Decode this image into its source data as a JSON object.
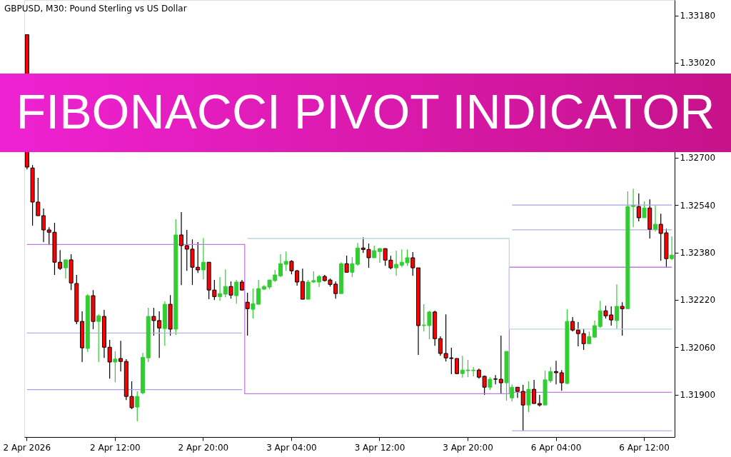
{
  "chart_data": {
    "type": "candlestick",
    "title": "FIBONACCI PIVOT INDICATOR",
    "subtitle": "GBPUSD, M30:  Pound Sterling vs US Dollar",
    "colors": [
      "#ff0000",
      "#ff0000",
      "#ff0000",
      "#ff0000",
      "#ff0000",
      "#ff0000",
      "#ff0000",
      "#32cd32",
      "#ff0000",
      "#ff0000",
      "#ff0000",
      "#32cd32",
      "#ff0000",
      "#32cd32",
      "#ff0000",
      "#ff0000",
      "#32cd32",
      "#ff0000",
      "#ff0000",
      "#ff0000",
      "#32cd32",
      "#32cd32",
      "#32cd32",
      "#ff0000",
      "#ff0000",
      "#32cd32",
      "#ff0000",
      "#32cd32",
      "#ff0000",
      "#ff0000",
      "#ff0000",
      "#ff0000",
      "#32cd32",
      "#ff0000",
      "#ff0000",
      "#32cd32",
      "#32cd32",
      "#ff0000",
      "#32cd32",
      "#ff0000",
      "#ff0000",
      "#32cd32",
      "#32cd32",
      "#32cd32",
      "#32cd32",
      "#32cd32",
      "#32cd32",
      "#32cd32",
      "#ff0000",
      "#ff0000",
      "#ff0000",
      "#32cd32",
      "#32cd32",
      "#32cd32",
      "#ff0000",
      "#ff0000",
      "#ff0000",
      "#32cd32",
      "#ff0000",
      "#32cd32",
      "#32cd32",
      "#ff0000",
      "#ff0000",
      "#32cd32",
      "#32cd32",
      "#ff0000",
      "#ff0000",
      "#32cd32",
      "#32cd32",
      "#32cd32",
      "#ff0000",
      "#ff0000",
      "#32cd32",
      "#32cd32",
      "#ff0000",
      "#ff0000",
      "#ff0000",
      "#ff0000",
      "#ff0000",
      "#32cd32",
      "#32cd32",
      "#32cd32",
      "#ff0000",
      "#ff0000",
      "#32cd32",
      "#ff0000",
      "#ff0000",
      "#32cd32",
      "#32cd32",
      "#ff0000",
      "#ff0000",
      "#32cd32",
      "#ff0000",
      "#ff0000",
      "#32cd32",
      "#32cd32",
      "#ff0000",
      "#ff0000",
      "#32cd32",
      "#ff0000",
      "#ff0000",
      "#ff0000",
      "#32cd32",
      "#32cd32",
      "#32cd32",
      "#ff0000",
      "#ff0000",
      "#32cd32",
      "#ff0000",
      "#32cd32",
      "#32cd32",
      "#ff0000",
      "#32cd32",
      "#ff0000",
      "#32cd32",
      "#ff0000",
      "#ff0000",
      "#32cd32"
    ],
    "categories": [
      "2 Apr 2026",
      null,
      null,
      null,
      null,
      null,
      null,
      null,
      null,
      null,
      null,
      null,
      null,
      null,
      null,
      null,
      "2 Apr 12:00",
      null,
      null,
      null,
      null,
      null,
      null,
      null,
      null,
      null,
      null,
      null,
      null,
      null,
      null,
      null,
      "2 Apr 20:00",
      null,
      null,
      null,
      null,
      null,
      null,
      null,
      null,
      null,
      null,
      null,
      null,
      null,
      null,
      null,
      "3 Apr 04:00",
      null,
      null,
      null,
      null,
      null,
      null,
      null,
      null,
      null,
      null,
      null,
      null,
      null,
      null,
      null,
      "3 Apr 12:00",
      null,
      null,
      null,
      null,
      null,
      null,
      null,
      null,
      null,
      null,
      null,
      null,
      null,
      null,
      null,
      "3 Apr 20:00",
      null,
      null,
      null,
      null,
      null,
      null,
      null,
      null,
      null,
      null,
      null,
      null,
      null,
      null,
      null,
      "6 Apr 04:00",
      null,
      null,
      null,
      null,
      null,
      null,
      null,
      null,
      null,
      null,
      null,
      null,
      null,
      null,
      null,
      "6 Apr 12:00",
      null,
      null,
      null,
      null,
      null
    ],
    "ohlc": [
      [
        1.33115,
        1.33115,
        1.3266,
        1.32668
      ],
      [
        1.32665,
        1.32675,
        1.3247,
        1.3255
      ],
      [
        1.3255,
        1.32632,
        1.32504,
        1.32504
      ],
      [
        1.32504,
        1.32528,
        1.32415,
        1.32456
      ],
      [
        1.32456,
        1.32465,
        1.32405,
        1.32448
      ],
      [
        1.32448,
        1.3248,
        1.32304,
        1.32347
      ],
      [
        1.32347,
        1.32388,
        1.32321,
        1.32326
      ],
      [
        1.32328,
        1.32355,
        1.32292,
        1.32355
      ],
      [
        1.32355,
        1.32374,
        1.32253,
        1.32277
      ],
      [
        1.32275,
        1.32304,
        1.32138,
        1.32147
      ],
      [
        1.32147,
        1.32181,
        1.3201,
        1.32058
      ],
      [
        1.32056,
        1.32239,
        1.32044,
        1.32234
      ],
      [
        1.32234,
        1.32253,
        1.32121,
        1.32147
      ],
      [
        1.32147,
        1.32171,
        1.3201,
        1.32166
      ],
      [
        1.32164,
        1.32186,
        1.32024,
        1.3206
      ],
      [
        1.3206,
        1.32085,
        1.31954,
        1.3201
      ],
      [
        1.3201,
        1.32046,
        1.31942,
        1.3202
      ],
      [
        1.32022,
        1.32082,
        1.31978,
        1.32012
      ],
      [
        1.32012,
        1.3202,
        1.31882,
        1.31894
      ],
      [
        1.31894,
        1.31945,
        1.31851,
        1.31856
      ],
      [
        1.31858,
        1.31911,
        1.3181,
        1.31894
      ],
      [
        1.31906,
        1.32041,
        1.31901,
        1.32026
      ],
      [
        1.32024,
        1.32193,
        1.3201,
        1.32164
      ],
      [
        1.32164,
        1.32193,
        1.32099,
        1.3215
      ],
      [
        1.3215,
        1.32181,
        1.32024,
        1.32125
      ],
      [
        1.32123,
        1.32215,
        1.32065,
        1.32205
      ],
      [
        1.32205,
        1.32236,
        1.32099,
        1.32121
      ],
      [
        1.32121,
        1.32492,
        1.32101,
        1.32439
      ],
      [
        1.32439,
        1.32516,
        1.3227,
        1.32403
      ],
      [
        1.32403,
        1.32456,
        1.32318,
        1.32391
      ],
      [
        1.32391,
        1.32424,
        1.3227,
        1.3233
      ],
      [
        1.3233,
        1.32415,
        1.32311,
        1.32321
      ],
      [
        1.32321,
        1.32429,
        1.32289,
        1.32347
      ],
      [
        1.32347,
        1.32347,
        1.32222,
        1.32253
      ],
      [
        1.32253,
        1.32287,
        1.32219,
        1.32231
      ],
      [
        1.32231,
        1.32297,
        1.32217,
        1.32241
      ],
      [
        1.32239,
        1.32323,
        1.32229,
        1.32265
      ],
      [
        1.32265,
        1.32282,
        1.32224,
        1.32236
      ],
      [
        1.32234,
        1.32287,
        1.32207,
        1.3228
      ],
      [
        1.3228,
        1.32287,
        1.32251,
        1.32253
      ],
      [
        1.32212,
        1.32244,
        1.32099,
        1.3219
      ],
      [
        1.32188,
        1.32258,
        1.32157,
        1.32207
      ],
      [
        1.32205,
        1.32287,
        1.32205,
        1.32258
      ],
      [
        1.32256,
        1.3227,
        1.32253,
        1.32265
      ],
      [
        1.32263,
        1.32287,
        1.32256,
        1.32287
      ],
      [
        1.32285,
        1.32321,
        1.3228,
        1.32304
      ],
      [
        1.32301,
        1.32374,
        1.32297,
        1.32342
      ],
      [
        1.3234,
        1.32383,
        1.32318,
        1.3235
      ],
      [
        1.3235,
        1.32354,
        1.32306,
        1.32318
      ],
      [
        1.32318,
        1.32321,
        1.32268,
        1.3228
      ],
      [
        1.32282,
        1.32325,
        1.32222,
        1.32222
      ],
      [
        1.32222,
        1.32287,
        1.32222,
        1.3228
      ],
      [
        1.3228,
        1.32316,
        1.32277,
        1.32285
      ],
      [
        1.3228,
        1.32304,
        1.32263,
        1.32299
      ],
      [
        1.32299,
        1.32304,
        1.32282,
        1.32285
      ],
      [
        1.32287,
        1.32292,
        1.32265,
        1.32272
      ],
      [
        1.32273,
        1.32282,
        1.32224,
        1.32241
      ],
      [
        1.32241,
        1.32347,
        1.32241,
        1.32342
      ],
      [
        1.32342,
        1.32369,
        1.32313,
        1.32313
      ],
      [
        1.32313,
        1.32364,
        1.32297,
        1.32342
      ],
      [
        1.3234,
        1.32412,
        1.32335,
        1.32395
      ],
      [
        1.32395,
        1.32431,
        1.32378,
        1.3239
      ],
      [
        1.3239,
        1.3241,
        1.32328,
        1.32362
      ],
      [
        1.32362,
        1.32403,
        1.32362,
        1.32386
      ],
      [
        1.32383,
        1.32395,
        1.32345,
        1.32393
      ],
      [
        1.32393,
        1.32393,
        1.32335,
        1.32354
      ],
      [
        1.32354,
        1.32369,
        1.32323,
        1.32328
      ],
      [
        1.32328,
        1.32386,
        1.32301,
        1.3234
      ],
      [
        1.32337,
        1.3239,
        1.3233,
        1.32347
      ],
      [
        1.32345,
        1.3239,
        1.32335,
        1.32362
      ],
      [
        1.32362,
        1.32381,
        1.32301,
        1.32328
      ],
      [
        1.32328,
        1.32328,
        1.32034,
        1.32133
      ],
      [
        1.32133,
        1.32205,
        1.32113,
        1.32135
      ],
      [
        1.32133,
        1.32183,
        1.32087,
        1.32179
      ],
      [
        1.32179,
        1.32183,
        1.32065,
        1.32089
      ],
      [
        1.32089,
        1.32097,
        1.32031,
        1.32039
      ],
      [
        1.32039,
        1.32171,
        1.32012,
        1.32024
      ],
      [
        1.32024,
        1.32058,
        1.31969,
        1.32022
      ],
      [
        1.32022,
        1.32022,
        1.31969,
        1.31971
      ],
      [
        1.31971,
        1.32031,
        1.31957,
        1.31983
      ],
      [
        1.31981,
        1.32017,
        1.31959,
        1.31983
      ],
      [
        1.31981,
        1.31993,
        1.31962,
        1.31983
      ],
      [
        1.31983,
        1.31988,
        1.31954,
        1.31959
      ],
      [
        1.31962,
        1.31964,
        1.31899,
        1.31925
      ],
      [
        1.31925,
        1.31959,
        1.31916,
        1.31952
      ],
      [
        1.31953,
        1.31966,
        1.31935,
        1.31952
      ],
      [
        1.31952,
        1.32099,
        1.31904,
        1.3194
      ],
      [
        1.3194,
        1.32046,
        1.3188,
        1.32046
      ],
      [
        1.31889,
        1.31935,
        1.31877,
        1.31925
      ],
      [
        1.31925,
        1.31925,
        1.31889,
        1.31911
      ],
      [
        1.31911,
        1.31933,
        1.31776,
        1.31865
      ],
      [
        1.31865,
        1.31945,
        1.31841,
        1.31918
      ],
      [
        1.31918,
        1.3195,
        1.3187,
        1.3187
      ],
      [
        1.3187,
        1.31899,
        1.3186,
        1.31865
      ],
      [
        1.31865,
        1.31981,
        1.31865,
        1.3195
      ],
      [
        1.31947,
        1.31993,
        1.3194,
        1.31978
      ],
      [
        1.31978,
        1.32014,
        1.31935,
        1.31974
      ],
      [
        1.31974,
        1.31983,
        1.31913,
        1.3194
      ],
      [
        1.31938,
        1.32188,
        1.31935,
        1.32147
      ],
      [
        1.32147,
        1.32162,
        1.32113,
        1.32118
      ],
      [
        1.32118,
        1.32145,
        1.32063,
        1.32106
      ],
      [
        1.32106,
        1.32123,
        1.32051,
        1.32072
      ],
      [
        1.32072,
        1.32113,
        1.32072,
        1.32096
      ],
      [
        1.32094,
        1.3215,
        1.32092,
        1.32133
      ],
      [
        1.3213,
        1.32217,
        1.32125,
        1.32183
      ],
      [
        1.32183,
        1.322,
        1.32157,
        1.32166
      ],
      [
        1.32169,
        1.32198,
        1.32133,
        1.32152
      ],
      [
        1.3215,
        1.32272,
        1.32121,
        1.32198
      ],
      [
        1.32198,
        1.32212,
        1.32099,
        1.3219
      ],
      [
        1.3219,
        1.32586,
        1.3219,
        1.32535
      ],
      [
        1.32535,
        1.32595,
        1.32465,
        1.32538
      ],
      [
        1.32535,
        1.32579,
        1.32485,
        1.32497
      ],
      [
        1.32497,
        1.32552,
        1.32497,
        1.3253
      ],
      [
        1.3253,
        1.32559,
        1.32427,
        1.32458
      ],
      [
        1.32458,
        1.32538,
        1.32451,
        1.32475
      ],
      [
        1.32475,
        1.32511,
        1.32352,
        1.32444
      ],
      [
        1.32446,
        1.3246,
        1.3233,
        1.32359
      ],
      [
        1.32359,
        1.32434,
        1.32354,
        1.32371
      ]
    ],
    "series": [
      {
        "type": "step",
        "color": "#c07ae0",
        "values": [
          1.32407,
          1.32407,
          1.32407,
          1.32407,
          1.32407,
          1.32407,
          1.32407,
          1.32407,
          1.32407,
          1.32407,
          1.32407,
          1.32407,
          1.32407,
          1.32407,
          1.32407,
          1.32407,
          1.32407,
          1.32407,
          1.32407,
          1.32407,
          1.32407,
          1.32407,
          1.32407,
          1.32407,
          1.32407,
          1.32407,
          1.32407,
          1.32407,
          1.32407,
          1.32407,
          1.32407,
          1.32407,
          1.32407,
          1.32407,
          1.32407,
          1.32407,
          1.32407,
          1.32407,
          1.32407,
          1.32407,
          1.31903,
          1.31903,
          1.31903,
          1.31903,
          1.31903,
          1.31903,
          1.31903,
          1.31903,
          1.31903,
          1.31903,
          1.31903,
          1.31903,
          1.31903,
          1.31903,
          1.31903,
          1.31903,
          1.31903,
          1.31903,
          1.31903,
          1.31903,
          1.31903,
          1.31903,
          1.31903,
          1.31903,
          1.31903,
          1.31903,
          1.31903,
          1.31903,
          1.31903,
          1.31903,
          1.31903,
          1.31903,
          1.31903,
          1.31903,
          1.31903,
          1.31903,
          1.31903,
          1.31903,
          1.31903,
          1.31903,
          1.31903,
          1.31903,
          1.31903,
          1.31903,
          1.31903,
          1.31903,
          1.31903,
          1.31903,
          1.3233,
          1.3233,
          1.3233,
          1.3233,
          1.3233,
          1.3233,
          1.3233,
          1.3233,
          1.3233,
          1.3233,
          1.3233,
          1.3233,
          1.3233,
          1.3233,
          1.3233,
          1.3233,
          1.3233,
          1.3233,
          1.3233,
          1.3233,
          1.3233,
          1.3233,
          1.3233,
          1.3233,
          1.3233,
          1.3233,
          1.3233,
          1.3233,
          1.3233,
          1.3233
        ]
      },
      {
        "type": "step",
        "color": "#b8b0e0",
        "values": [
          1.32108,
          1.32108,
          1.32108,
          1.32108,
          1.32108,
          1.32108,
          1.32108,
          1.32108,
          1.32108,
          1.32108,
          1.32108,
          1.32108,
          1.32108,
          1.32108,
          1.32108,
          1.32108,
          1.32108,
          1.32108,
          1.32108,
          1.32108,
          1.32108,
          1.32108,
          1.32108,
          1.32108,
          1.32108,
          1.32108,
          1.32108,
          1.32108,
          1.32108,
          1.32108,
          1.32108,
          1.32108,
          1.32108,
          1.32108,
          1.32108,
          1.32108,
          1.32108,
          1.32108,
          1.32108,
          1.32108,
          null,
          null,
          null,
          null,
          null,
          null,
          null,
          null,
          null,
          null,
          null,
          null,
          null,
          null,
          null,
          null,
          null,
          null,
          null,
          null,
          null,
          null,
          null,
          null,
          null,
          null,
          null,
          null,
          null,
          null,
          null,
          null,
          null,
          null,
          null,
          null,
          null,
          null,
          null,
          null,
          null,
          null,
          null,
          null,
          null,
          null,
          null,
          null,
          1.32456,
          1.32456,
          1.32456,
          1.32456,
          1.32456,
          1.32456,
          1.32456,
          1.32456,
          1.32456,
          1.32456,
          1.32456,
          1.32456,
          1.32456,
          1.32456,
          1.32456,
          1.32456,
          1.32456,
          1.32456,
          1.32456,
          1.32456,
          1.32456,
          1.32456,
          1.32456,
          1.32456,
          1.32456,
          1.32456,
          1.32456,
          1.32456,
          1.32456,
          1.32456
        ]
      },
      {
        "type": "step",
        "color": "#ad9de6",
        "values": [
          1.31917,
          1.31917,
          1.31917,
          1.31917,
          1.31917,
          1.31917,
          1.31917,
          1.31917,
          1.31917,
          1.31917,
          1.31917,
          1.31917,
          1.31917,
          1.31917,
          1.31917,
          1.31917,
          1.31917,
          1.31917,
          1.31917,
          1.31917,
          1.31917,
          1.31917,
          1.31917,
          1.31917,
          1.31917,
          1.31917,
          1.31917,
          1.31917,
          1.31917,
          1.31917,
          1.31917,
          1.31917,
          1.31917,
          1.31917,
          1.31917,
          1.31917,
          1.31917,
          1.31917,
          1.31917,
          1.31917,
          null,
          null,
          null,
          null,
          null,
          null,
          null,
          null,
          null,
          null,
          null,
          null,
          null,
          null,
          null,
          null,
          null,
          null,
          null,
          null,
          null,
          null,
          null,
          null,
          null,
          null,
          null,
          null,
          null,
          null,
          null,
          null,
          null,
          null,
          null,
          null,
          null,
          null,
          null,
          null,
          null,
          null,
          null,
          null,
          null,
          null,
          null,
          null,
          1.3254,
          1.3254,
          1.3254,
          1.3254,
          1.3254,
          1.3254,
          1.3254,
          1.3254,
          1.3254,
          1.3254,
          1.3254,
          1.3254,
          1.3254,
          1.3254,
          1.3254,
          1.3254,
          1.3254,
          1.3254,
          1.3254,
          1.3254,
          1.3254,
          1.3254,
          1.3254,
          1.3254,
          1.3254,
          1.3254,
          1.3254,
          1.3254,
          1.3254,
          1.3254
        ]
      },
      {
        "type": "step",
        "color": "#b9d9de",
        "values": [
          null,
          null,
          null,
          null,
          null,
          null,
          null,
          null,
          null,
          null,
          null,
          null,
          null,
          null,
          null,
          null,
          null,
          null,
          null,
          null,
          null,
          null,
          null,
          null,
          null,
          null,
          null,
          null,
          null,
          null,
          null,
          null,
          null,
          null,
          null,
          null,
          null,
          null,
          null,
          null,
          1.32427,
          1.32427,
          1.32427,
          1.32427,
          1.32427,
          1.32427,
          1.32427,
          1.32427,
          1.32427,
          1.32427,
          1.32427,
          1.32427,
          1.32427,
          1.32427,
          1.32427,
          1.32427,
          1.32427,
          1.32427,
          1.32427,
          1.32427,
          1.32427,
          1.32427,
          1.32427,
          1.32427,
          1.32427,
          1.32427,
          1.32427,
          1.32427,
          1.32427,
          1.32427,
          1.32427,
          1.32427,
          1.32427,
          1.32427,
          1.32427,
          1.32427,
          1.32427,
          1.32427,
          1.32427,
          1.32427,
          1.32427,
          1.32427,
          1.32427,
          1.32427,
          1.32427,
          1.32427,
          1.32427,
          1.32427,
          1.32121,
          1.32121,
          1.32121,
          1.32121,
          1.32121,
          1.32121,
          1.32121,
          1.32121,
          1.32121,
          1.32121,
          1.32121,
          1.32121,
          1.32121,
          1.32121,
          1.32121,
          1.32121,
          1.32121,
          1.32121,
          1.32121,
          1.32121,
          1.32121,
          1.32121,
          1.32121,
          1.32121,
          1.32121,
          1.32121,
          1.32121,
          1.32121,
          1.32121,
          1.32121
        ]
      },
      {
        "type": "step",
        "color": "#c07ae0",
        "values": [
          null,
          null,
          null,
          null,
          null,
          null,
          null,
          null,
          null,
          null,
          null,
          null,
          null,
          null,
          null,
          null,
          null,
          null,
          null,
          null,
          null,
          null,
          null,
          null,
          null,
          null,
          null,
          null,
          null,
          null,
          null,
          null,
          null,
          null,
          null,
          null,
          null,
          null,
          null,
          null,
          null,
          null,
          null,
          null,
          null,
          null,
          null,
          null,
          null,
          null,
          null,
          null,
          null,
          null,
          null,
          null,
          null,
          null,
          null,
          null,
          null,
          null,
          null,
          null,
          null,
          null,
          null,
          null,
          null,
          null,
          null,
          null,
          null,
          null,
          null,
          null,
          null,
          null,
          null,
          null,
          null,
          null,
          null,
          null,
          null,
          null,
          null,
          null,
          1.31908,
          1.31908,
          1.31908,
          1.31908,
          1.31908,
          1.31908,
          1.31908,
          1.31908,
          1.31908,
          1.31908,
          1.31908,
          1.31908,
          1.31908,
          1.31908,
          1.31908,
          1.31908,
          1.31908,
          1.31908,
          1.31908,
          1.31908,
          1.31908,
          1.31908,
          1.31908,
          1.31908,
          1.31908,
          1.31908,
          1.31908,
          1.31908,
          1.31908,
          1.31908
        ]
      },
      {
        "type": "step",
        "color": "#b8b0e0",
        "values": [
          null,
          null,
          null,
          null,
          null,
          null,
          null,
          null,
          null,
          null,
          null,
          null,
          null,
          null,
          null,
          null,
          null,
          null,
          null,
          null,
          null,
          null,
          null,
          null,
          null,
          null,
          null,
          null,
          null,
          null,
          null,
          null,
          null,
          null,
          null,
          null,
          null,
          null,
          null,
          null,
          null,
          null,
          null,
          null,
          null,
          null,
          null,
          null,
          null,
          null,
          null,
          null,
          null,
          null,
          null,
          null,
          null,
          null,
          null,
          null,
          null,
          null,
          null,
          null,
          null,
          null,
          null,
          null,
          null,
          null,
          null,
          null,
          null,
          null,
          null,
          null,
          null,
          null,
          null,
          null,
          null,
          null,
          null,
          null,
          null,
          null,
          null,
          null,
          1.31778,
          1.31778,
          1.31778,
          1.31778,
          1.31778,
          1.31778,
          1.31778,
          1.31778,
          1.31778,
          1.31778,
          1.31778,
          1.31778,
          1.31778,
          1.31778,
          1.31778,
          1.31778,
          1.31778,
          1.31778,
          1.31778,
          1.31778,
          1.31778,
          1.31778,
          1.31778,
          1.31778,
          1.31778,
          1.31778,
          1.31778,
          1.31778,
          1.31778,
          1.31778
        ]
      }
    ],
    "ylim": [
      1.31757,
      1.33232
    ],
    "yticks": [
      {
        "value": 1.319,
        "label": "1.31900"
      },
      {
        "value": 1.3206,
        "label": "1.32060"
      },
      {
        "value": 1.3222,
        "label": "1.32220"
      },
      {
        "value": 1.3238,
        "label": "1.32380"
      },
      {
        "value": 1.3254,
        "label": "1.32540"
      },
      {
        "value": 1.327,
        "label": "1.32700"
      },
      {
        "value": 1.3302,
        "label": "1.33020"
      },
      {
        "value": 1.3318,
        "label": "1.33180"
      }
    ]
  }
}
